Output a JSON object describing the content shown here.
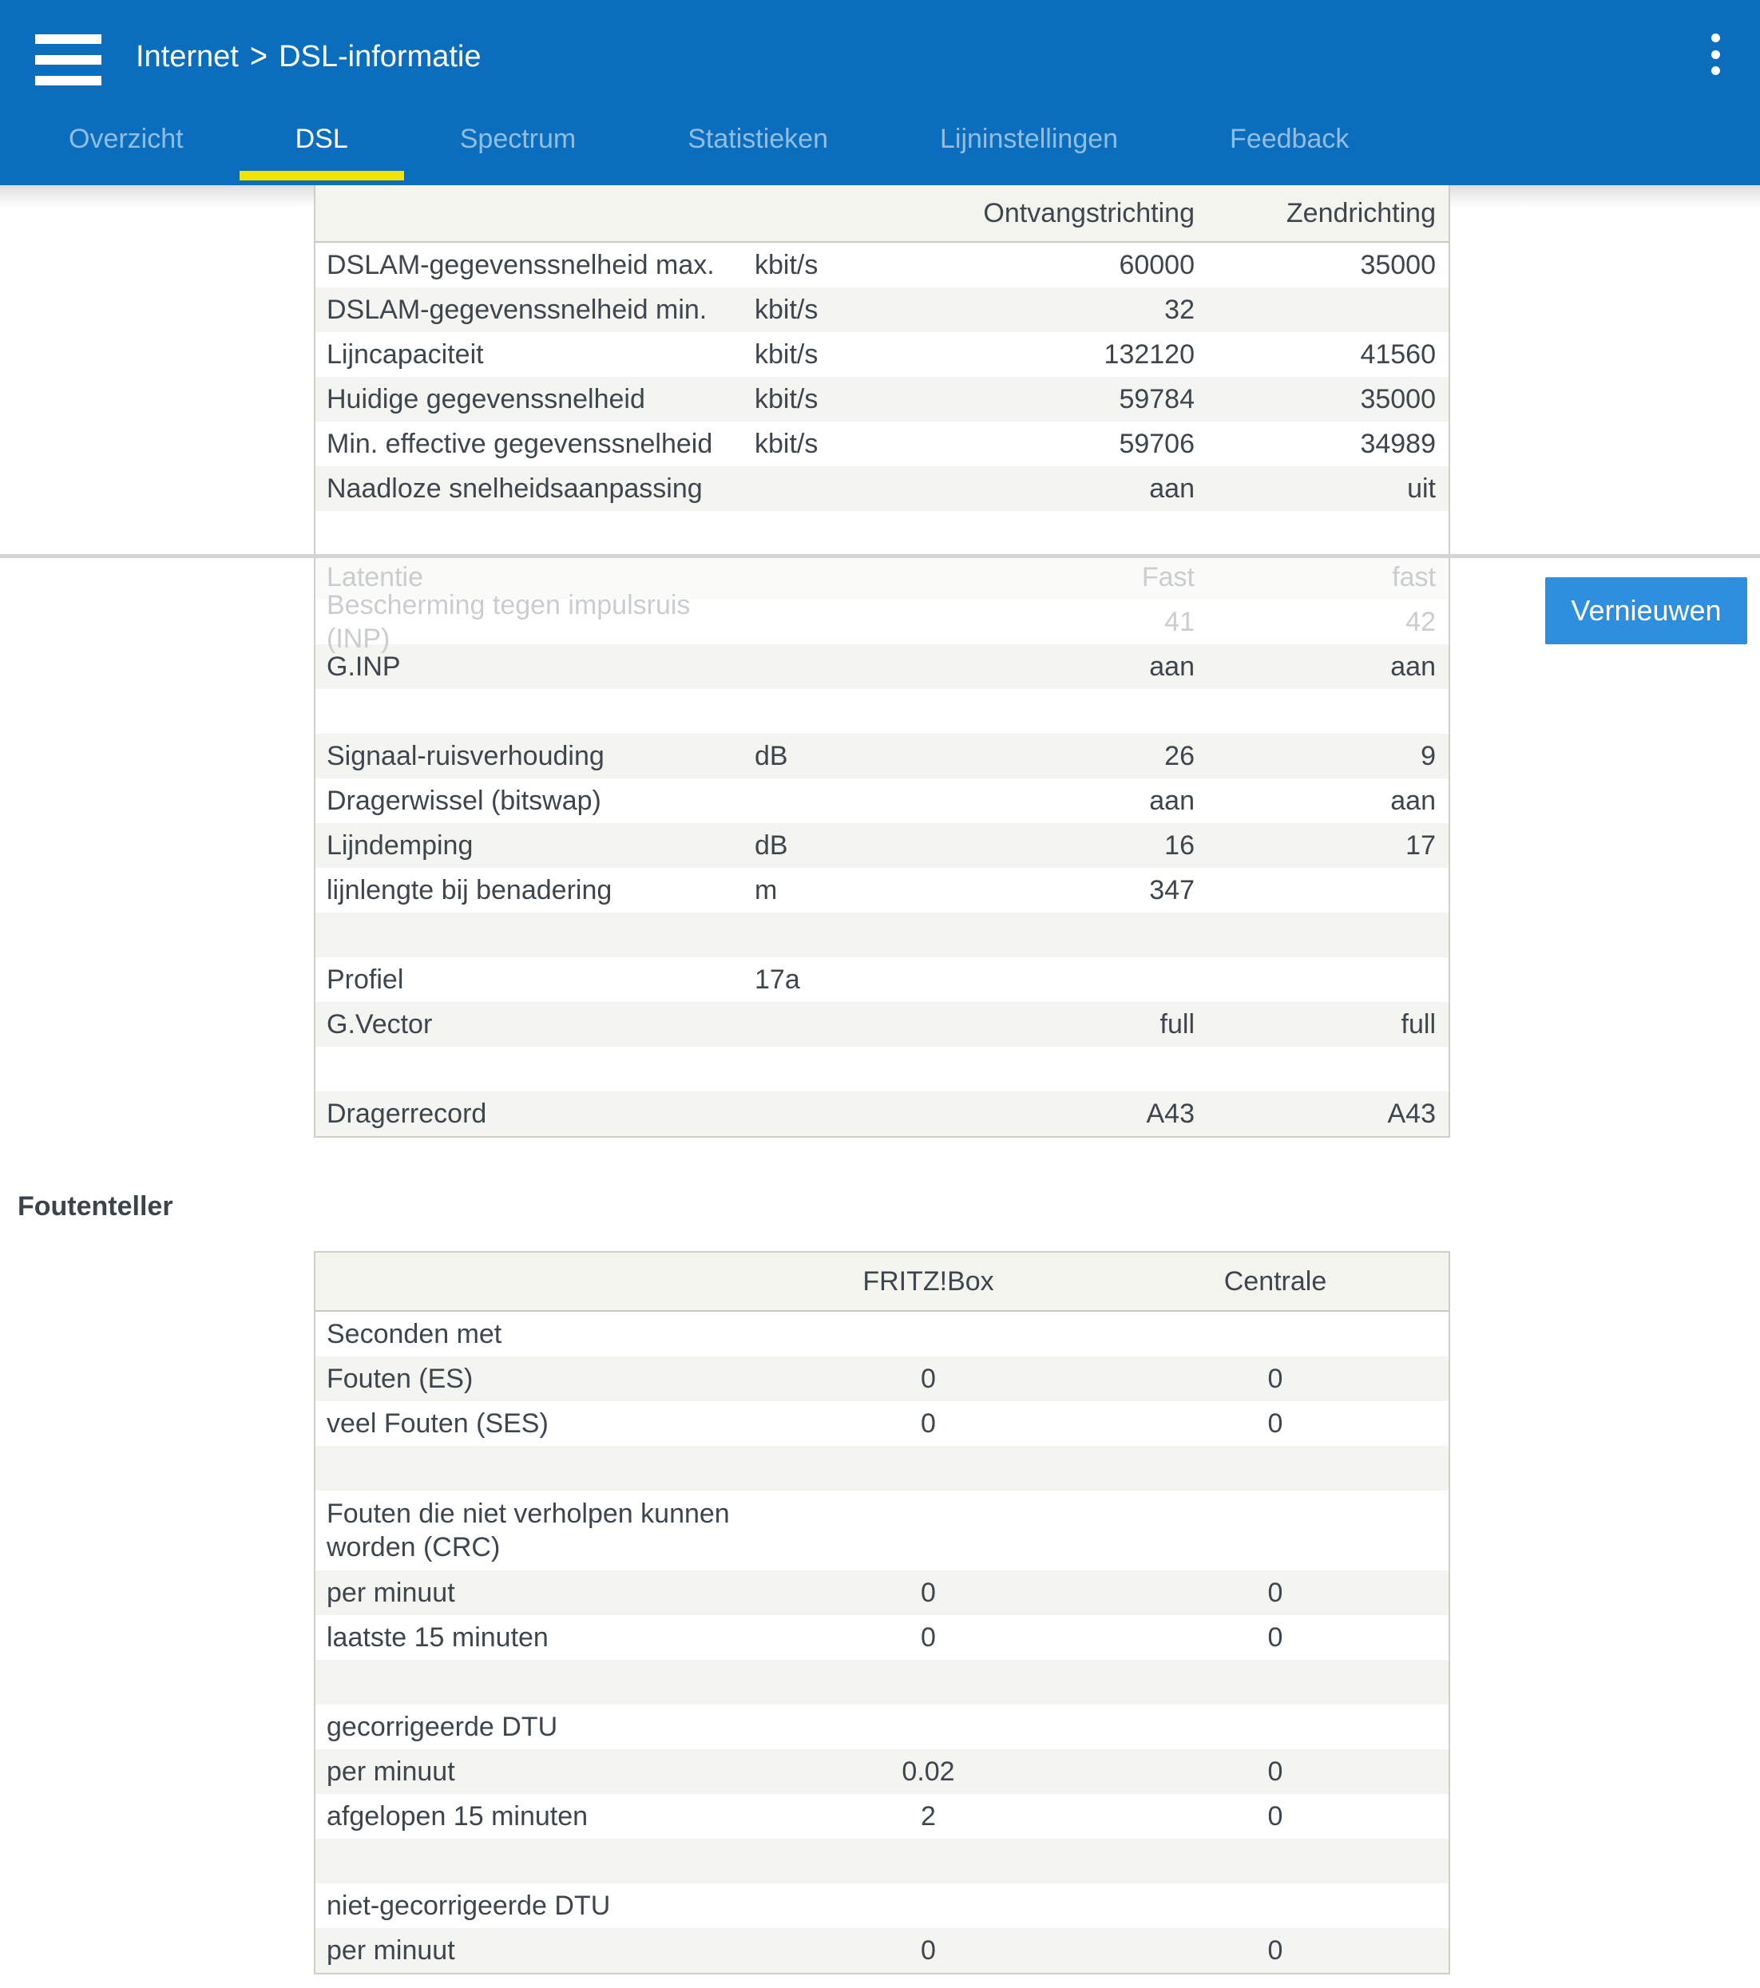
{
  "header": {
    "breadcrumb": {
      "section": "Internet",
      "separator": ">",
      "page": "DSL-informatie"
    },
    "menu_icon": "hamburger-icon",
    "more_icon": "kebab-menu-icon",
    "tabs": [
      {
        "label": "Overzicht",
        "active": false
      },
      {
        "label": "DSL",
        "active": true
      },
      {
        "label": "Spectrum",
        "active": false
      },
      {
        "label": "Statistieken",
        "active": false
      },
      {
        "label": "Lijninstellingen",
        "active": false
      },
      {
        "label": "Feedback",
        "active": false
      }
    ]
  },
  "colors": {
    "header_blue": "#0a6dbd",
    "active_tab_underline_yellow": "#f2e300",
    "refresh_button_blue": "#2e8fe0",
    "row_alt_gray": "#f4f4f1",
    "table_header_gray": "#f4f4ef",
    "text_dark": "#3d464e",
    "faded_text": "#c9cdd0",
    "divider_gray": "#d3d3d1"
  },
  "refresh_button": {
    "label": "Vernieuwen"
  },
  "dsl_table": {
    "columns": [
      "",
      "",
      "Ontvangstrichting",
      "Zendrichting"
    ],
    "rows": [
      {
        "label": "DSLAM-gegevenssnelheid max.",
        "unit": "kbit/s",
        "rx": "60000",
        "tx": "35000"
      },
      {
        "label": "DSLAM-gegevenssnelheid min.",
        "unit": "kbit/s",
        "rx": "32",
        "tx": ""
      },
      {
        "label": "Lijncapaciteit",
        "unit": "kbit/s",
        "rx": "132120",
        "tx": "41560"
      },
      {
        "label": "Huidige gegevenssnelheid",
        "unit": "kbit/s",
        "rx": "59784",
        "tx": "35000"
      },
      {
        "label": "Min. effective gegevenssnelheid",
        "unit": "kbit/s",
        "rx": "59706",
        "tx": "34989"
      },
      {
        "label": "Naadloze snelheidsaanpassing",
        "unit": "",
        "rx": "aan",
        "tx": "uit"
      },
      {
        "label": "",
        "unit": "",
        "rx": "",
        "tx": "",
        "h": 55
      },
      {
        "label": "Latentie",
        "unit": "",
        "rx": "Fast",
        "tx": "fast",
        "faded": true
      },
      {
        "label": "Bescherming tegen impulsruis (INP)",
        "unit": "",
        "rx": "41",
        "tx": "42",
        "faded": true
      },
      {
        "label": "G.INP",
        "unit": "",
        "rx": "aan",
        "tx": "aan"
      },
      {
        "label": "",
        "unit": "",
        "rx": "",
        "tx": ""
      },
      {
        "label": "Signaal-ruisverhouding",
        "unit": "dB",
        "rx": "26",
        "tx": "9"
      },
      {
        "label": "Dragerwissel (bitswap)",
        "unit": "",
        "rx": "aan",
        "tx": "aan"
      },
      {
        "label": "Lijndemping",
        "unit": "dB",
        "rx": "16",
        "tx": "17"
      },
      {
        "label": "lijnlengte bij benadering",
        "unit": "m",
        "rx": "347",
        "tx": ""
      },
      {
        "label": "",
        "unit": "",
        "rx": "",
        "tx": ""
      },
      {
        "label": "Profiel",
        "unit": "17a",
        "rx": "",
        "tx": ""
      },
      {
        "label": "G.Vector",
        "unit": "",
        "rx": "full",
        "tx": "full"
      },
      {
        "label": "",
        "unit": "",
        "rx": "",
        "tx": ""
      },
      {
        "label": "Dragerrecord",
        "unit": "",
        "rx": "A43",
        "tx": "A43"
      }
    ]
  },
  "error_counter": {
    "title": "Foutenteller",
    "columns": [
      "",
      "FRITZ!Box",
      "Centrale"
    ],
    "rows": [
      {
        "label": "Seconden met",
        "fritzbox": "",
        "centrale": ""
      },
      {
        "label": "Fouten (ES)",
        "fritzbox": "0",
        "centrale": "0"
      },
      {
        "label": "veel Fouten (SES)",
        "fritzbox": "0",
        "centrale": "0"
      },
      {
        "label": "",
        "fritzbox": "",
        "centrale": ""
      },
      {
        "label": "Fouten die niet verholpen kunnen worden (CRC)",
        "fritzbox": "",
        "centrale": "",
        "h": 100
      },
      {
        "label": "per minuut",
        "fritzbox": "0",
        "centrale": "0"
      },
      {
        "label": "laatste 15 minuten",
        "fritzbox": "0",
        "centrale": "0"
      },
      {
        "label": "",
        "fritzbox": "",
        "centrale": ""
      },
      {
        "label": "gecorrigeerde DTU",
        "fritzbox": "",
        "centrale": ""
      },
      {
        "label": "per minuut",
        "fritzbox": "0.02",
        "centrale": "0"
      },
      {
        "label": "afgelopen 15 minuten",
        "fritzbox": "2",
        "centrale": "0"
      },
      {
        "label": "",
        "fritzbox": "",
        "centrale": ""
      },
      {
        "label": "niet-gecorrigeerde DTU",
        "fritzbox": "",
        "centrale": ""
      },
      {
        "label": "per minuut",
        "fritzbox": "0",
        "centrale": "0"
      }
    ]
  }
}
